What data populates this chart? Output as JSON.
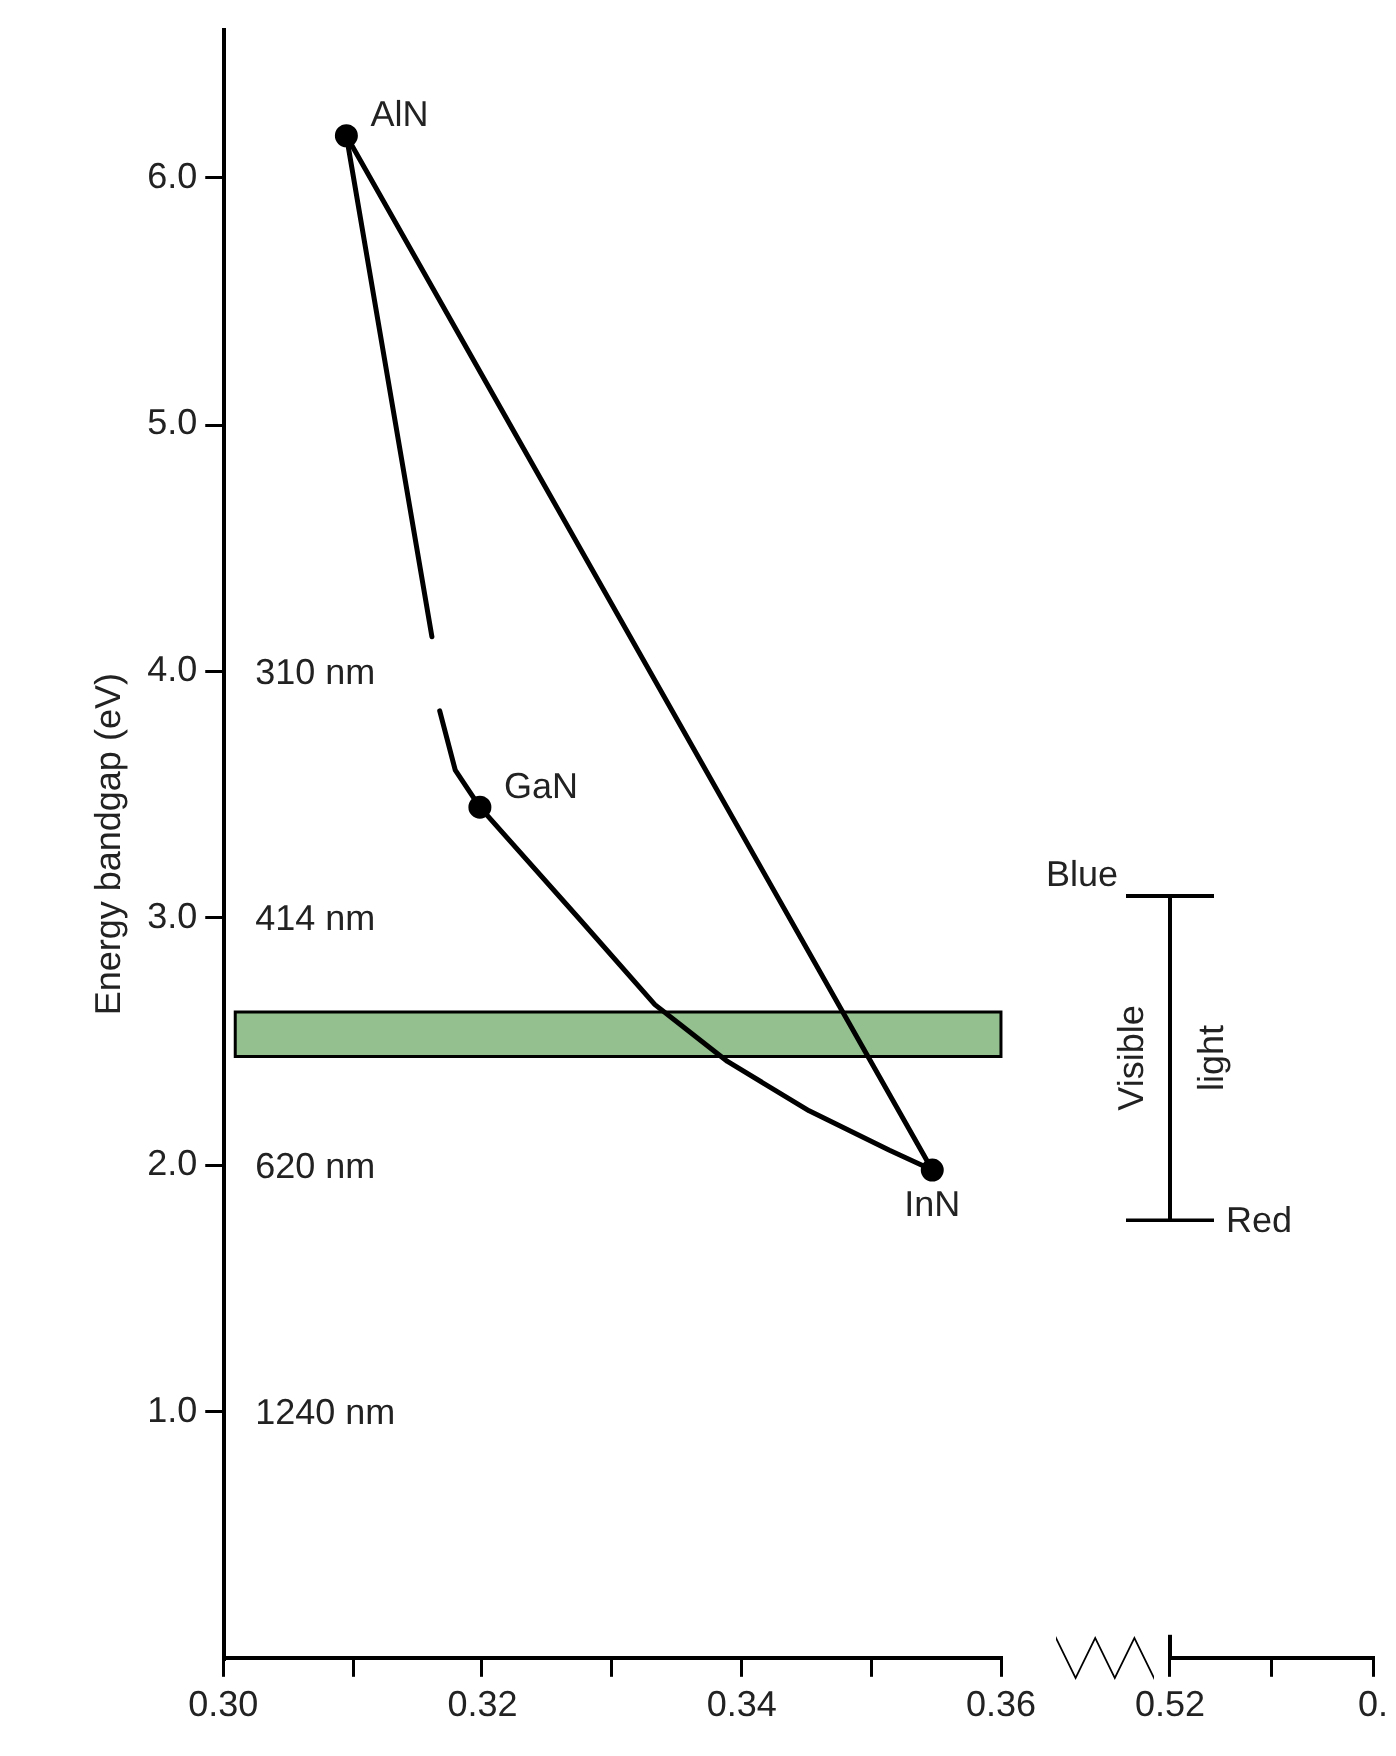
{
  "chart_data": [
    {
      "type": "line",
      "ylabel": "Energy bandgap (eV)",
      "xlim": [
        0.3,
        0.36
      ],
      "xticks": [
        {
          "value": 0.3,
          "label": "0.30"
        },
        {
          "value": 0.31,
          "label": null
        },
        0.32,
        {
          "value": 0.33,
          "label": null
        },
        0.34,
        {
          "value": 0.35,
          "label": null
        },
        0.36
      ],
      "ylim": [
        0,
        6.6
      ],
      "yticks": [
        {
          "value": 1,
          "label": "1.0"
        },
        {
          "value": 2,
          "label": "2.0"
        },
        {
          "value": 3,
          "label": "3.0"
        },
        {
          "value": 4,
          "label": "4.0"
        },
        {
          "value": 5,
          "label": "5.0"
        },
        {
          "value": 6,
          "label": "6.0"
        }
      ],
      "series": [
        {
          "color": "#000000",
          "x": [
            0.3095,
            0.3547
          ],
          "values": [
            6.17,
            1.98
          ]
        },
        {
          "color": "#000000",
          "x": [
            0.3095,
            0.3161,
            0.3164,
            0.3167,
            0.3179,
            0.3198
          ],
          "values": [
            6.17,
            4.14,
            null,
            3.84,
            3.6,
            3.45
          ]
        },
        {
          "color": "#000000",
          "x": [
            0.3198,
            0.3276,
            0.3333,
            0.3389,
            0.3452,
            0.3514,
            0.3547
          ],
          "values": [
            3.45,
            2.99,
            2.65,
            2.42,
            2.22,
            2.06,
            1.98
          ]
        },
        {
          "type": "scatter",
          "color": "#000000",
          "x": [
            0.3095,
            0.3198,
            0.3547
          ],
          "values": [
            6.17,
            3.45,
            1.98
          ]
        }
      ],
      "bands": [
        {
          "axis": "y",
          "from": 2.44,
          "to": 2.62,
          "color": "#93c08e"
        }
      ],
      "annotations": [
        {
          "text": "AlN",
          "x": 0.3095,
          "y": 6.17
        },
        {
          "text": "GaN",
          "x": 0.3198,
          "y": 3.45
        },
        {
          "text": "InN",
          "x": 0.3547,
          "y": 1.98
        },
        "310 nm",
        "414 nm",
        "620 nm",
        "1240 nm"
      ],
      "grid": false,
      "legend": false
    },
    {
      "type": "other",
      "categories": [
        "0.52",
        null,
        "0."
      ],
      "annotations": [
        "Blue",
        "Visible light",
        "Red"
      ]
    }
  ]
}
